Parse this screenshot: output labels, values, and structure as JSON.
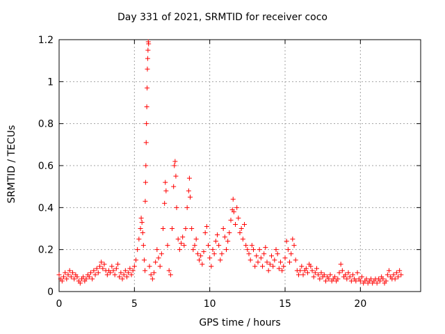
{
  "chart_data": {
    "type": "scatter",
    "title": "Day 331 of 2021, SRMTID for receiver coco",
    "xlabel": "GPS time / hours",
    "ylabel": "SRMTID / TECUs",
    "xlim": [
      0,
      24
    ],
    "ylim": [
      0,
      1.2
    ],
    "xticks": [
      0,
      5,
      10,
      15,
      20
    ],
    "xtick_labels": [
      "0",
      "5",
      "10",
      "15",
      "20"
    ],
    "yticks": [
      0,
      0.2,
      0.4,
      0.6,
      0.8,
      1.0,
      1.2
    ],
    "ytick_labels": [
      "0",
      "0.2",
      "0.4",
      "0.6",
      "0.8",
      "1",
      "1.2"
    ],
    "grid": true,
    "marker": "+",
    "color": "#ff0000",
    "series": [
      {
        "name": "SRMTID",
        "points": [
          [
            0.0,
            0.08
          ],
          [
            0.1,
            0.06
          ],
          [
            0.2,
            0.05
          ],
          [
            0.3,
            0.07
          ],
          [
            0.4,
            0.09
          ],
          [
            0.5,
            0.06
          ],
          [
            0.6,
            0.08
          ],
          [
            0.7,
            0.1
          ],
          [
            0.8,
            0.07
          ],
          [
            0.9,
            0.09
          ],
          [
            1.0,
            0.06
          ],
          [
            1.1,
            0.08
          ],
          [
            1.2,
            0.07
          ],
          [
            1.3,
            0.05
          ],
          [
            1.4,
            0.04
          ],
          [
            1.5,
            0.06
          ],
          [
            1.6,
            0.07
          ],
          [
            1.7,
            0.05
          ],
          [
            1.8,
            0.06
          ],
          [
            1.9,
            0.08
          ],
          [
            2.0,
            0.07
          ],
          [
            2.1,
            0.09
          ],
          [
            2.2,
            0.06
          ],
          [
            2.3,
            0.1
          ],
          [
            2.4,
            0.08
          ],
          [
            2.5,
            0.11
          ],
          [
            2.6,
            0.09
          ],
          [
            2.7,
            0.12
          ],
          [
            2.8,
            0.14
          ],
          [
            2.9,
            0.11
          ],
          [
            3.0,
            0.13
          ],
          [
            3.1,
            0.1
          ],
          [
            3.2,
            0.08
          ],
          [
            3.3,
            0.1
          ],
          [
            3.4,
            0.09
          ],
          [
            3.5,
            0.12
          ],
          [
            3.6,
            0.1
          ],
          [
            3.7,
            0.08
          ],
          [
            3.8,
            0.11
          ],
          [
            3.9,
            0.13
          ],
          [
            4.0,
            0.07
          ],
          [
            4.1,
            0.09
          ],
          [
            4.2,
            0.06
          ],
          [
            4.3,
            0.08
          ],
          [
            4.4,
            0.1
          ],
          [
            4.5,
            0.07
          ],
          [
            4.6,
            0.09
          ],
          [
            4.7,
            0.11
          ],
          [
            4.8,
            0.08
          ],
          [
            4.9,
            0.1
          ],
          [
            5.0,
            0.12
          ],
          [
            5.1,
            0.15
          ],
          [
            5.2,
            0.2
          ],
          [
            5.3,
            0.25
          ],
          [
            5.4,
            0.3
          ],
          [
            5.45,
            0.35
          ],
          [
            5.5,
            0.33
          ],
          [
            5.55,
            0.28
          ],
          [
            5.6,
            0.22
          ],
          [
            5.65,
            0.15
          ],
          [
            5.7,
            0.1
          ],
          [
            5.72,
            0.43
          ],
          [
            5.74,
            0.52
          ],
          [
            5.76,
            0.6
          ],
          [
            5.78,
            0.71
          ],
          [
            5.8,
            0.8
          ],
          [
            5.82,
            0.88
          ],
          [
            5.84,
            0.97
          ],
          [
            5.86,
            1.06
          ],
          [
            5.88,
            1.11
          ],
          [
            5.9,
            1.15
          ],
          [
            5.92,
            1.19
          ],
          [
            5.94,
            1.18
          ],
          [
            6.0,
            0.12
          ],
          [
            6.1,
            0.08
          ],
          [
            6.2,
            0.06
          ],
          [
            6.3,
            0.09
          ],
          [
            6.4,
            0.14
          ],
          [
            6.5,
            0.2
          ],
          [
            6.6,
            0.16
          ],
          [
            6.7,
            0.12
          ],
          [
            6.8,
            0.18
          ],
          [
            6.9,
            0.3
          ],
          [
            7.0,
            0.42
          ],
          [
            7.05,
            0.52
          ],
          [
            7.1,
            0.48
          ],
          [
            7.2,
            0.22
          ],
          [
            7.3,
            0.1
          ],
          [
            7.4,
            0.08
          ],
          [
            7.5,
            0.3
          ],
          [
            7.6,
            0.5
          ],
          [
            7.65,
            0.6
          ],
          [
            7.7,
            0.62
          ],
          [
            7.75,
            0.55
          ],
          [
            7.8,
            0.4
          ],
          [
            7.9,
            0.25
          ],
          [
            8.0,
            0.2
          ],
          [
            8.1,
            0.23
          ],
          [
            8.2,
            0.26
          ],
          [
            8.3,
            0.22
          ],
          [
            8.4,
            0.3
          ],
          [
            8.5,
            0.4
          ],
          [
            8.6,
            0.48
          ],
          [
            8.65,
            0.54
          ],
          [
            8.7,
            0.45
          ],
          [
            8.8,
            0.3
          ],
          [
            8.9,
            0.2
          ],
          [
            9.0,
            0.22
          ],
          [
            9.1,
            0.25
          ],
          [
            9.2,
            0.18
          ],
          [
            9.3,
            0.15
          ],
          [
            9.4,
            0.17
          ],
          [
            9.5,
            0.13
          ],
          [
            9.6,
            0.19
          ],
          [
            9.7,
            0.28
          ],
          [
            9.8,
            0.31
          ],
          [
            9.9,
            0.22
          ],
          [
            10.0,
            0.16
          ],
          [
            10.1,
            0.12
          ],
          [
            10.2,
            0.2
          ],
          [
            10.3,
            0.18
          ],
          [
            10.4,
            0.24
          ],
          [
            10.5,
            0.27
          ],
          [
            10.6,
            0.22
          ],
          [
            10.7,
            0.15
          ],
          [
            10.8,
            0.18
          ],
          [
            10.9,
            0.3
          ],
          [
            11.0,
            0.26
          ],
          [
            11.1,
            0.2
          ],
          [
            11.2,
            0.24
          ],
          [
            11.3,
            0.28
          ],
          [
            11.4,
            0.34
          ],
          [
            11.5,
            0.39
          ],
          [
            11.55,
            0.44
          ],
          [
            11.6,
            0.38
          ],
          [
            11.7,
            0.32
          ],
          [
            11.8,
            0.4
          ],
          [
            11.9,
            0.35
          ],
          [
            12.0,
            0.28
          ],
          [
            12.1,
            0.3
          ],
          [
            12.2,
            0.25
          ],
          [
            12.3,
            0.32
          ],
          [
            12.4,
            0.22
          ],
          [
            12.5,
            0.2
          ],
          [
            12.6,
            0.18
          ],
          [
            12.7,
            0.15
          ],
          [
            12.8,
            0.22
          ],
          [
            12.9,
            0.2
          ],
          [
            13.0,
            0.12
          ],
          [
            13.1,
            0.17
          ],
          [
            13.2,
            0.14
          ],
          [
            13.3,
            0.2
          ],
          [
            13.4,
            0.16
          ],
          [
            13.5,
            0.12
          ],
          [
            13.6,
            0.18
          ],
          [
            13.7,
            0.21
          ],
          [
            13.8,
            0.14
          ],
          [
            13.9,
            0.1
          ],
          [
            14.0,
            0.13
          ],
          [
            14.1,
            0.17
          ],
          [
            14.2,
            0.12
          ],
          [
            14.3,
            0.15
          ],
          [
            14.4,
            0.2
          ],
          [
            14.5,
            0.18
          ],
          [
            14.6,
            0.11
          ],
          [
            14.7,
            0.14
          ],
          [
            14.8,
            0.1
          ],
          [
            14.9,
            0.12
          ],
          [
            15.0,
            0.16
          ],
          [
            15.1,
            0.24
          ],
          [
            15.2,
            0.2
          ],
          [
            15.3,
            0.14
          ],
          [
            15.4,
            0.18
          ],
          [
            15.5,
            0.25
          ],
          [
            15.6,
            0.22
          ],
          [
            15.7,
            0.15
          ],
          [
            15.8,
            0.1
          ],
          [
            15.9,
            0.08
          ],
          [
            16.0,
            0.1
          ],
          [
            16.1,
            0.12
          ],
          [
            16.2,
            0.08
          ],
          [
            16.3,
            0.1
          ],
          [
            16.4,
            0.11
          ],
          [
            16.5,
            0.09
          ],
          [
            16.6,
            0.13
          ],
          [
            16.7,
            0.12
          ],
          [
            16.8,
            0.1
          ],
          [
            16.9,
            0.07
          ],
          [
            17.0,
            0.09
          ],
          [
            17.1,
            0.11
          ],
          [
            17.2,
            0.08
          ],
          [
            17.3,
            0.06
          ],
          [
            17.4,
            0.09
          ],
          [
            17.5,
            0.07
          ],
          [
            17.6,
            0.08
          ],
          [
            17.7,
            0.05
          ],
          [
            17.8,
            0.07
          ],
          [
            17.9,
            0.06
          ],
          [
            18.0,
            0.08
          ],
          [
            18.1,
            0.05
          ],
          [
            18.2,
            0.06
          ],
          [
            18.3,
            0.07
          ],
          [
            18.4,
            0.05
          ],
          [
            18.5,
            0.06
          ],
          [
            18.6,
            0.09
          ],
          [
            18.7,
            0.13
          ],
          [
            18.8,
            0.1
          ],
          [
            18.9,
            0.07
          ],
          [
            19.0,
            0.08
          ],
          [
            19.1,
            0.06
          ],
          [
            19.2,
            0.09
          ],
          [
            19.3,
            0.07
          ],
          [
            19.4,
            0.05
          ],
          [
            19.5,
            0.08
          ],
          [
            19.6,
            0.06
          ],
          [
            19.7,
            0.05
          ],
          [
            19.8,
            0.09
          ],
          [
            19.9,
            0.06
          ],
          [
            20.0,
            0.05
          ],
          [
            20.1,
            0.07
          ],
          [
            20.2,
            0.04
          ],
          [
            20.3,
            0.05
          ],
          [
            20.4,
            0.06
          ],
          [
            20.5,
            0.04
          ],
          [
            20.6,
            0.05
          ],
          [
            20.7,
            0.06
          ],
          [
            20.8,
            0.04
          ],
          [
            20.9,
            0.05
          ],
          [
            21.0,
            0.06
          ],
          [
            21.1,
            0.04
          ],
          [
            21.2,
            0.06
          ],
          [
            21.3,
            0.05
          ],
          [
            21.4,
            0.07
          ],
          [
            21.5,
            0.06
          ],
          [
            21.6,
            0.04
          ],
          [
            21.7,
            0.05
          ],
          [
            21.8,
            0.08
          ],
          [
            21.9,
            0.1
          ],
          [
            22.0,
            0.07
          ],
          [
            22.1,
            0.06
          ],
          [
            22.2,
            0.08
          ],
          [
            22.3,
            0.06
          ],
          [
            22.4,
            0.09
          ],
          [
            22.5,
            0.07
          ],
          [
            22.6,
            0.1
          ],
          [
            22.7,
            0.08
          ]
        ]
      }
    ]
  }
}
